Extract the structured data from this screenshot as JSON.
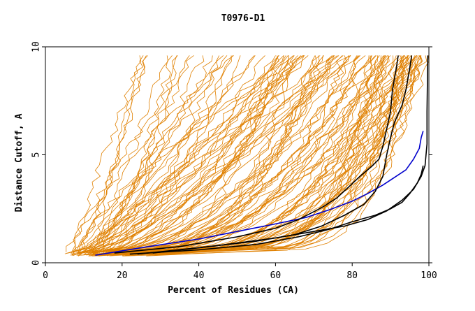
{
  "chart_data": {
    "type": "line",
    "title": "T0976-D1",
    "xlabel": "Percent of Residues (CA)",
    "ylabel": "Distance Cutoff, A",
    "xlim": [
      0,
      100
    ],
    "ylim": [
      0,
      10
    ],
    "x_ticks": [
      "0",
      "20",
      "40",
      "60",
      "80",
      "100"
    ],
    "y_ticks": [
      "0",
      "5",
      "10"
    ],
    "grid": false,
    "legend": "none",
    "colors": {
      "background_series": "#e08000",
      "highlight_blue": "#0000cc",
      "highlight_black": "#000000",
      "axes": "#000000"
    },
    "background_series_count": 120,
    "highlighted_series": [
      {
        "color": "#0000cc",
        "points": [
          [
            13,
            0.35
          ],
          [
            25,
            0.7
          ],
          [
            40,
            1.1
          ],
          [
            50,
            1.45
          ],
          [
            60,
            1.8
          ],
          [
            68,
            2.1
          ],
          [
            74,
            2.45
          ],
          [
            80,
            2.85
          ],
          [
            84,
            3.2
          ],
          [
            88,
            3.6
          ],
          [
            91,
            3.95
          ],
          [
            94,
            4.3
          ],
          [
            96,
            4.8
          ],
          [
            97.5,
            5.3
          ],
          [
            98,
            5.8
          ],
          [
            98.5,
            6.1
          ]
        ]
      },
      {
        "color": "#000000",
        "points": [
          [
            18,
            0.45
          ],
          [
            35,
            0.75
          ],
          [
            50,
            1.2
          ],
          [
            60,
            1.6
          ],
          [
            66,
            2.0
          ],
          [
            72,
            2.55
          ],
          [
            76,
            3.0
          ],
          [
            79,
            3.5
          ],
          [
            82,
            4.0
          ],
          [
            85,
            4.45
          ],
          [
            87,
            4.8
          ],
          [
            88,
            5.4
          ],
          [
            89,
            6.2
          ],
          [
            90,
            7.0
          ],
          [
            90.5,
            8.0
          ],
          [
            91.5,
            9.0
          ],
          [
            92,
            9.6
          ]
        ]
      },
      {
        "color": "#000000",
        "points": [
          [
            24,
            0.4
          ],
          [
            40,
            0.7
          ],
          [
            55,
            1.0
          ],
          [
            65,
            1.3
          ],
          [
            72,
            1.7
          ],
          [
            78,
            2.2
          ],
          [
            83,
            2.7
          ],
          [
            86,
            3.3
          ],
          [
            88,
            4.0
          ],
          [
            89,
            5.0
          ],
          [
            90,
            5.8
          ],
          [
            91,
            6.5
          ],
          [
            93,
            7.3
          ],
          [
            94,
            8.0
          ],
          [
            95,
            9.0
          ],
          [
            95.5,
            9.6
          ]
        ]
      },
      {
        "color": "#000000",
        "points": [
          [
            28,
            0.45
          ],
          [
            45,
            0.8
          ],
          [
            60,
            1.15
          ],
          [
            70,
            1.45
          ],
          [
            78,
            1.7
          ],
          [
            84,
            2.0
          ],
          [
            89,
            2.4
          ],
          [
            93,
            2.9
          ],
          [
            96,
            3.4
          ],
          [
            98,
            4.0
          ],
          [
            99,
            4.5
          ],
          [
            99.5,
            5.5
          ],
          [
            99.5,
            7.0
          ],
          [
            99.7,
            9.6
          ]
        ]
      },
      {
        "color": "#000000",
        "points": [
          [
            22,
            0.4
          ],
          [
            40,
            0.6
          ],
          [
            55,
            0.85
          ],
          [
            66,
            1.2
          ],
          [
            74,
            1.55
          ],
          [
            80,
            1.9
          ],
          [
            86,
            2.2
          ],
          [
            90,
            2.5
          ],
          [
            93,
            2.8
          ],
          [
            95,
            3.2
          ],
          [
            97,
            3.7
          ],
          [
            98,
            4.1
          ],
          [
            98.5,
            4.5
          ]
        ]
      }
    ]
  }
}
